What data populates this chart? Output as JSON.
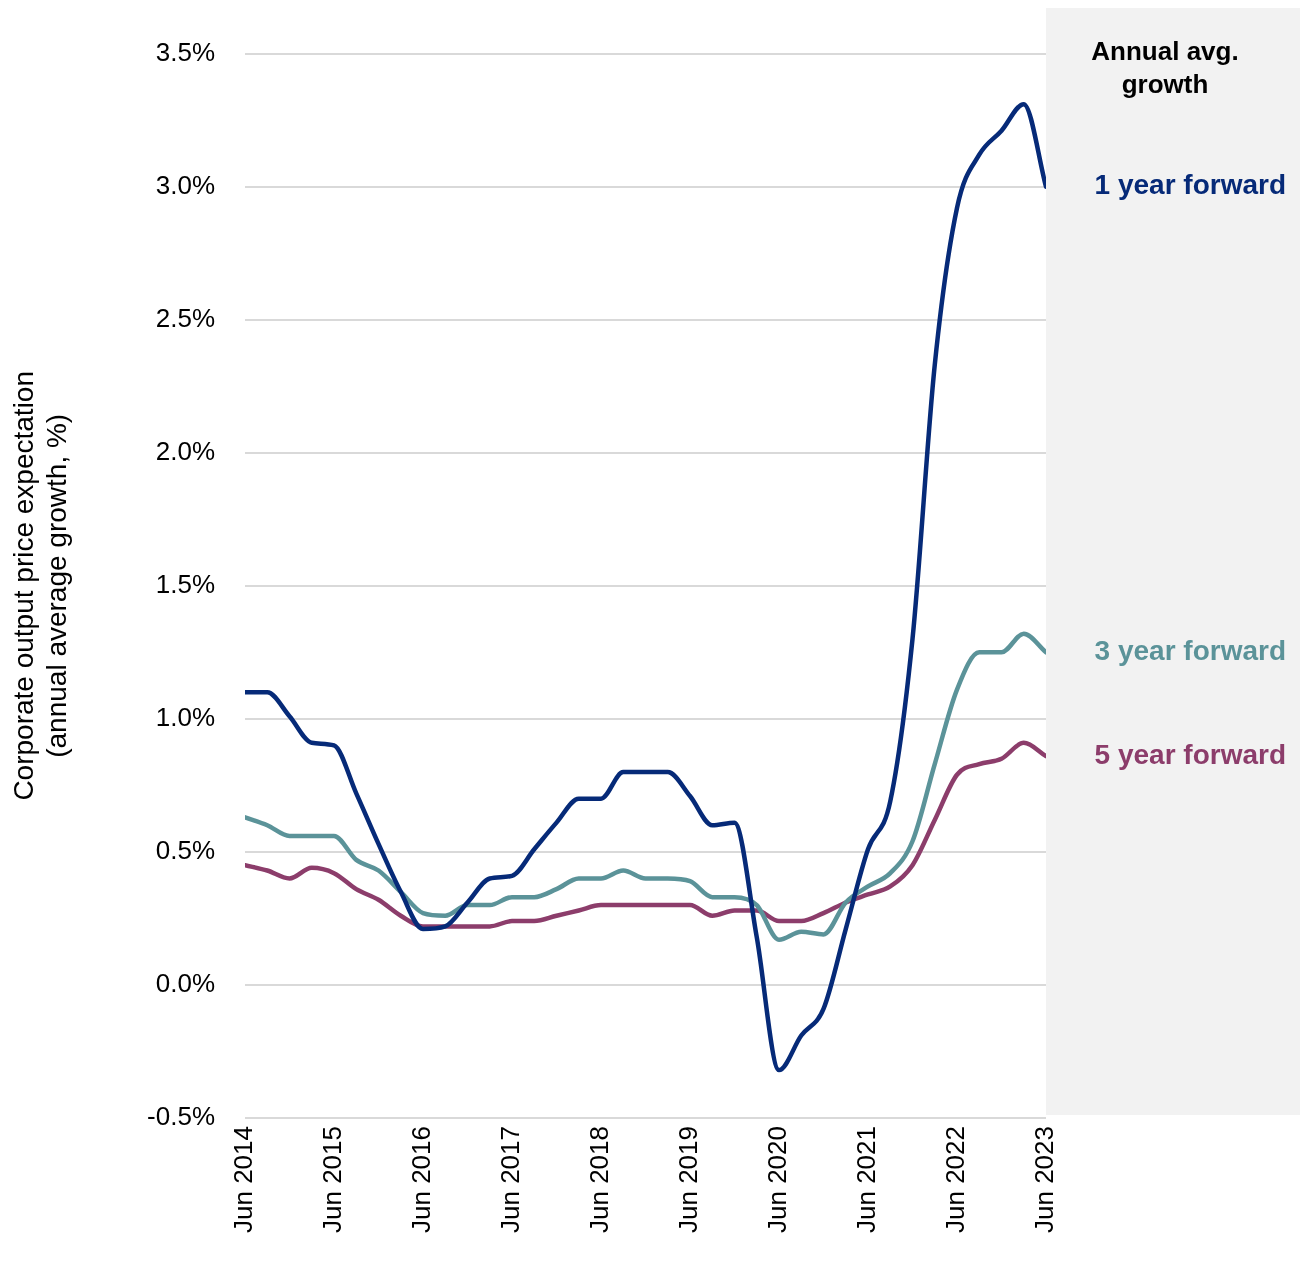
{
  "chart_data": {
    "type": "line",
    "ylabel": "Corporate output price expectation\n(annual average growth, %)",
    "legend_title": "Annual avg.\ngrowth",
    "x": [
      "2014-06",
      "2014-09",
      "2014-12",
      "2015-03",
      "2015-06",
      "2015-09",
      "2015-12",
      "2016-03",
      "2016-06",
      "2016-09",
      "2016-12",
      "2017-03",
      "2017-06",
      "2017-09",
      "2017-12",
      "2018-03",
      "2018-06",
      "2018-09",
      "2018-12",
      "2019-03",
      "2019-06",
      "2019-09",
      "2019-12",
      "2020-03",
      "2020-06",
      "2020-09",
      "2020-12",
      "2021-03",
      "2021-06",
      "2021-09",
      "2021-12",
      "2022-03",
      "2022-06",
      "2022-09",
      "2022-12",
      "2023-03",
      "2023-06"
    ],
    "series": [
      {
        "name": "1 year forward",
        "color": "#062a78",
        "values": [
          1.1,
          1.1,
          1.01,
          0.91,
          0.9,
          0.72,
          0.53,
          0.35,
          0.21,
          0.22,
          0.31,
          0.4,
          0.41,
          0.51,
          0.61,
          0.7,
          0.7,
          0.8,
          0.8,
          0.8,
          0.71,
          0.6,
          0.61,
          0.18,
          -0.32,
          -0.19,
          -0.09,
          0.21,
          0.51,
          0.69,
          1.3,
          2.33,
          2.92,
          3.12,
          3.21,
          3.31,
          3.0
        ]
      },
      {
        "name": "3 year forward",
        "color": "#5b9399",
        "values": [
          0.63,
          0.6,
          0.56,
          0.56,
          0.56,
          0.47,
          0.43,
          0.35,
          0.27,
          0.26,
          0.3,
          0.3,
          0.33,
          0.33,
          0.36,
          0.4,
          0.4,
          0.43,
          0.4,
          0.4,
          0.39,
          0.33,
          0.33,
          0.3,
          0.17,
          0.2,
          0.19,
          0.31,
          0.37,
          0.42,
          0.54,
          0.83,
          1.11,
          1.25,
          1.25,
          1.32,
          1.25
        ]
      },
      {
        "name": "5 year forward",
        "color": "#8c3d6b",
        "values": [
          0.45,
          0.43,
          0.4,
          0.44,
          0.42,
          0.36,
          0.32,
          0.26,
          0.22,
          0.22,
          0.22,
          0.22,
          0.24,
          0.24,
          0.26,
          0.28,
          0.3,
          0.3,
          0.3,
          0.3,
          0.3,
          0.26,
          0.28,
          0.28,
          0.24,
          0.24,
          0.27,
          0.31,
          0.34,
          0.37,
          0.45,
          0.62,
          0.79,
          0.83,
          0.85,
          0.91,
          0.86
        ]
      }
    ],
    "xlim": [
      "2014-06",
      "2023-06"
    ],
    "xticks": [
      {
        "value": "2014-06",
        "label": "Jun 2014"
      },
      {
        "value": "2015-06",
        "label": "Jun 2015"
      },
      {
        "value": "2016-06",
        "label": "Jun 2016"
      },
      {
        "value": "2017-06",
        "label": "Jun 2017"
      },
      {
        "value": "2018-06",
        "label": "Jun 2018"
      },
      {
        "value": "2019-06",
        "label": "Jun 2019"
      },
      {
        "value": "2020-06",
        "label": "Jun 2020"
      },
      {
        "value": "2021-06",
        "label": "Jun 2021"
      },
      {
        "value": "2022-06",
        "label": "Jun 2022"
      },
      {
        "value": "2023-06",
        "label": "Jun 2023"
      }
    ],
    "ylim": [
      -0.5,
      3.5
    ],
    "yticks": [
      {
        "value": -0.5,
        "label": "-0.5%"
      },
      {
        "value": 0,
        "label": "0.0%"
      },
      {
        "value": 0.5,
        "label": "0.5%"
      },
      {
        "value": 1,
        "label": "1.0%"
      },
      {
        "value": 1.5,
        "label": "1.5%"
      },
      {
        "value": 2,
        "label": "2.0%"
      },
      {
        "value": 2.5,
        "label": "2.5%"
      },
      {
        "value": 3,
        "label": "3.0%"
      },
      {
        "value": 3.5,
        "label": "3.5%"
      }
    ],
    "grid": "y",
    "marker": "none",
    "line_style": "solid"
  }
}
